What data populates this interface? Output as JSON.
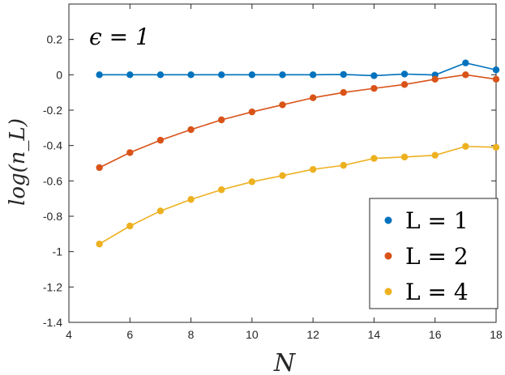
{
  "chart_data": {
    "type": "line",
    "annotation": "ϵ = 1",
    "xlabel": "N",
    "ylabel": "log(n_L)",
    "xlim": [
      4,
      18
    ],
    "ylim": [
      -1.4,
      0.4
    ],
    "xticks": [
      4,
      6,
      8,
      10,
      12,
      14,
      16,
      18
    ],
    "yticks": [
      -1.4,
      -1.2,
      -1,
      -0.8,
      -0.6,
      -0.4,
      -0.2,
      0,
      0.2
    ],
    "ytick_labels": [
      "-1.4",
      "-1.2",
      "-1",
      "-0.8",
      "-0.6",
      "-0.4",
      "-0.2",
      "0",
      "0.2"
    ],
    "grid": false,
    "legend_position": "bottom-right",
    "x": [
      5,
      6,
      7,
      8,
      9,
      10,
      11,
      12,
      13,
      14,
      15,
      16,
      17,
      18
    ],
    "series": [
      {
        "name": "L = 1",
        "color": "#0072BD",
        "values": [
          0.0,
          0.0,
          0.0,
          0.0,
          0.0,
          0.0,
          0.0,
          0.0,
          0.002,
          -0.005,
          0.004,
          -0.001,
          0.067,
          0.028
        ]
      },
      {
        "name": "L = 2",
        "color": "#D95319",
        "values": [
          -0.525,
          -0.44,
          -0.37,
          -0.31,
          -0.255,
          -0.21,
          -0.17,
          -0.13,
          -0.1,
          -0.077,
          -0.055,
          -0.025,
          0.0,
          -0.025
        ]
      },
      {
        "name": "L = 4",
        "color": "#EDB120",
        "values": [
          -0.957,
          -0.855,
          -0.77,
          -0.705,
          -0.65,
          -0.605,
          -0.57,
          -0.535,
          -0.512,
          -0.473,
          -0.465,
          -0.455,
          -0.405,
          -0.41
        ]
      }
    ]
  }
}
